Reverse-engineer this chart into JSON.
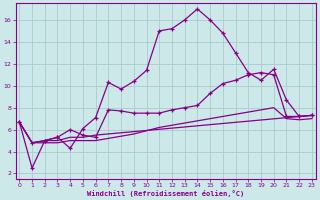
{
  "xlabel": "Windchill (Refroidissement éolien,°C)",
  "bg_color": "#cce8e8",
  "grid_color": "#aacccc",
  "line_color": "#880088",
  "x_ticks": [
    0,
    1,
    2,
    3,
    4,
    5,
    6,
    7,
    8,
    9,
    10,
    11,
    12,
    13,
    14,
    15,
    16,
    17,
    18,
    19,
    20,
    21,
    22,
    23
  ],
  "y_ticks": [
    2,
    4,
    6,
    8,
    10,
    12,
    14,
    16
  ],
  "ylim": [
    1.5,
    17.5
  ],
  "xlim": [
    -0.3,
    23.3
  ],
  "main_line_x": [
    0,
    1,
    2,
    3,
    4,
    5,
    6,
    7,
    8,
    9,
    10,
    11,
    12,
    13,
    14,
    15,
    16,
    17,
    18,
    19,
    20,
    21,
    22,
    23
  ],
  "main_line_y": [
    6.7,
    2.5,
    5.0,
    5.3,
    4.3,
    6.1,
    7.1,
    10.3,
    9.7,
    10.4,
    11.4,
    15.0,
    15.2,
    16.0,
    17.0,
    16.0,
    14.8,
    13.0,
    11.2,
    10.5,
    11.5,
    8.7,
    7.2,
    7.3
  ],
  "line2_x": [
    0,
    1,
    2,
    3,
    4,
    5,
    6,
    7,
    8,
    9,
    10,
    11,
    12,
    13,
    14,
    15,
    16,
    17,
    18,
    19,
    20,
    21,
    22,
    23
  ],
  "line2_y": [
    6.7,
    4.8,
    5.0,
    5.3,
    6.0,
    5.5,
    5.3,
    7.8,
    7.7,
    7.5,
    7.5,
    7.5,
    7.8,
    8.0,
    8.2,
    9.3,
    10.2,
    10.5,
    11.0,
    11.2,
    11.0,
    7.2,
    7.2,
    7.3
  ],
  "line3_x": [
    0,
    1,
    2,
    3,
    4,
    5,
    6,
    23
  ],
  "line3_y": [
    6.7,
    4.8,
    5.0,
    5.0,
    5.3,
    5.3,
    5.5,
    7.3
  ],
  "line4_x": [
    0,
    1,
    2,
    3,
    4,
    5,
    6,
    7,
    8,
    9,
    10,
    11,
    12,
    13,
    14,
    15,
    16,
    17,
    18,
    19,
    20,
    21,
    22,
    23
  ],
  "line4_y": [
    6.7,
    4.8,
    4.8,
    4.8,
    5.0,
    5.0,
    5.0,
    5.2,
    5.4,
    5.6,
    5.9,
    6.2,
    6.4,
    6.6,
    6.8,
    7.0,
    7.2,
    7.4,
    7.6,
    7.8,
    8.0,
    7.0,
    6.9,
    7.0
  ]
}
